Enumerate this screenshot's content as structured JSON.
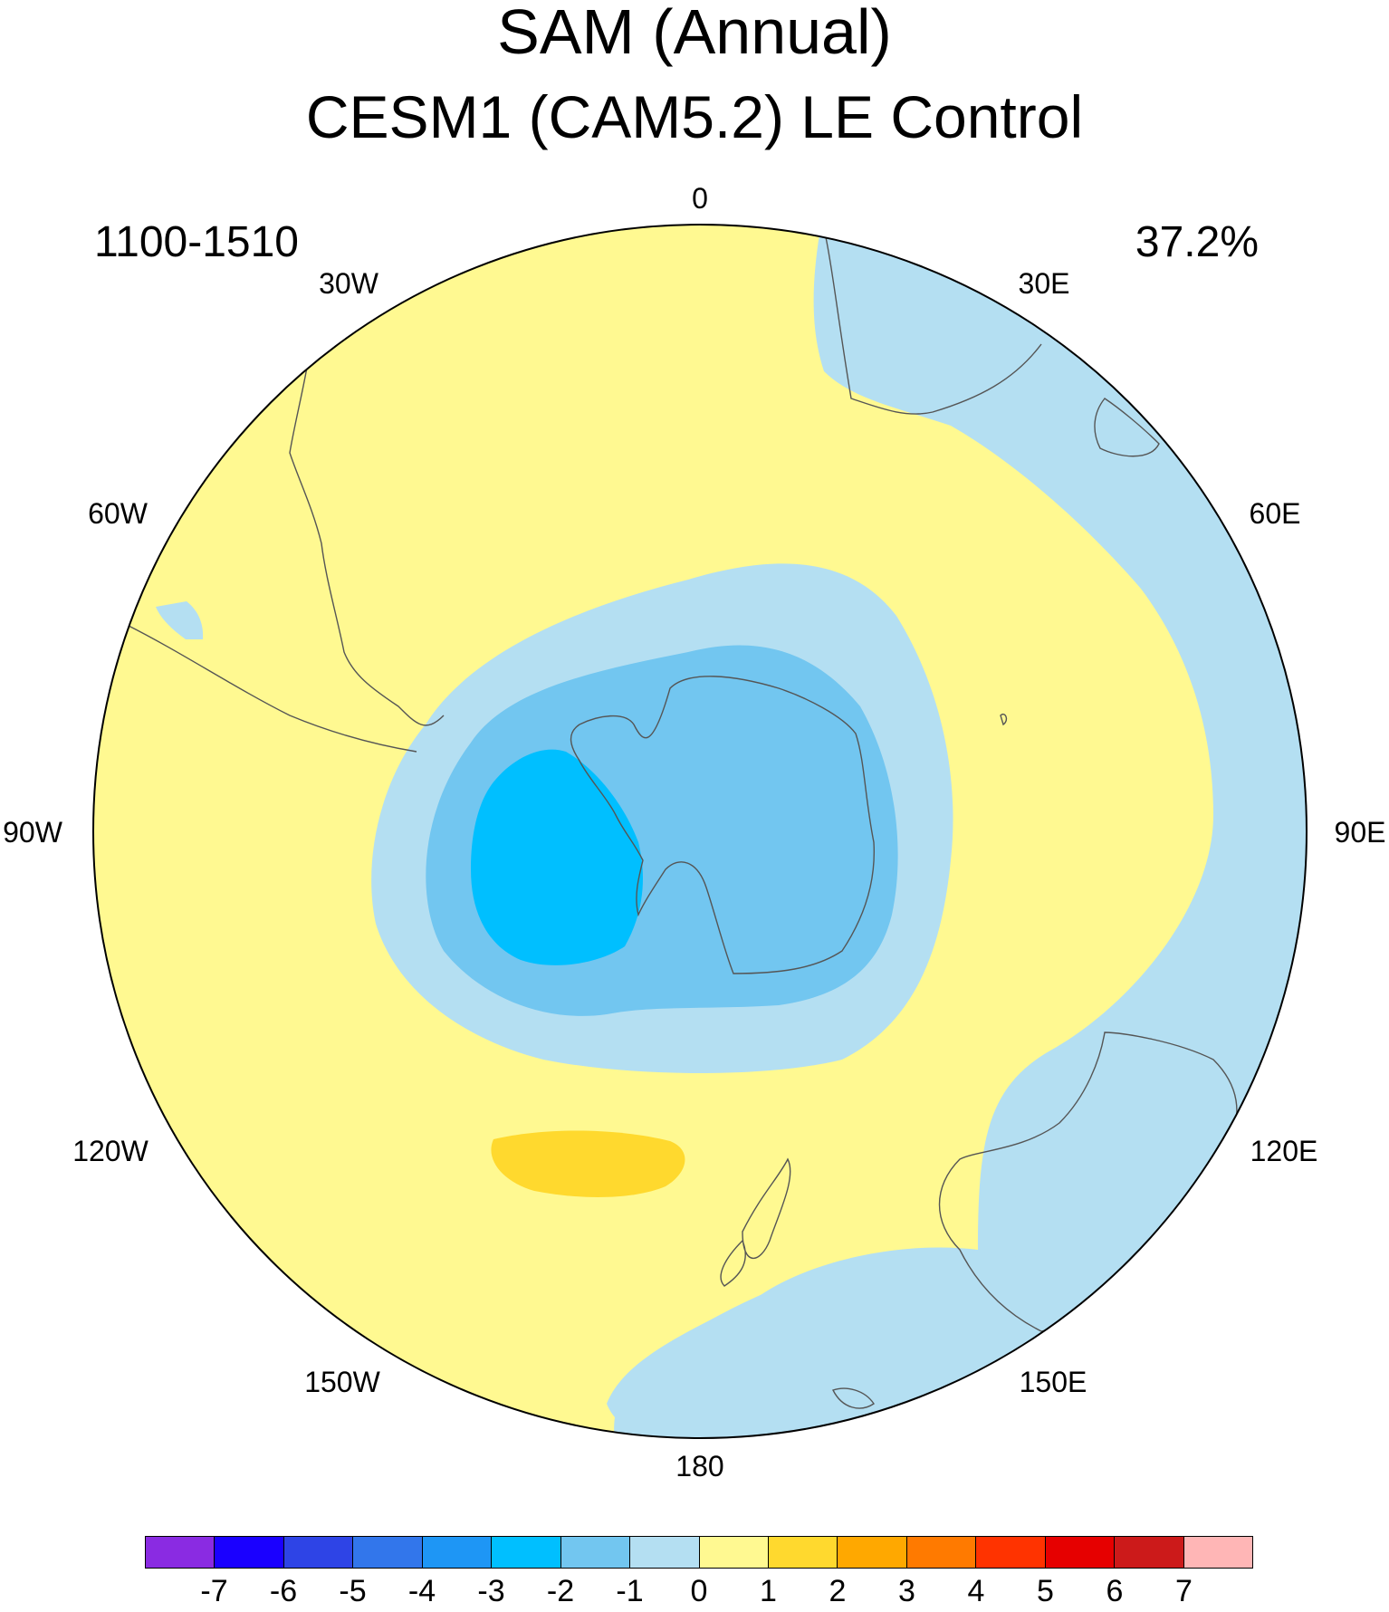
{
  "title": "SAM (Annual)",
  "subtitle": "CESM1 (CAM5.2) LE Control",
  "period": "1100-1510",
  "variance_explained": "37.2%",
  "longitude_labels": [
    "0",
    "30E",
    "60E",
    "90E",
    "120E",
    "150E",
    "180",
    "150W",
    "120W",
    "90W",
    "60W",
    "30W"
  ],
  "colorbar": {
    "ticks": [
      "-7",
      "-6",
      "-5",
      "-4",
      "-3",
      "-2",
      "-1",
      "0",
      "1",
      "2",
      "3",
      "4",
      "5",
      "6",
      "7"
    ],
    "colors": [
      "#8a2be2",
      "#1a00ff",
      "#2e44e6",
      "#3276eb",
      "#1e96f5",
      "#00bfff",
      "#72c6f0",
      "#b4dff2",
      "#fff991",
      "#ffd92e",
      "#ffa800",
      "#ff7a00",
      "#ff3300",
      "#e60000",
      "#cc1a1a",
      "#ffb6b6"
    ]
  },
  "map": {
    "projection": "south polar stereographic",
    "pole_lon_up": 0,
    "colors": {
      "positive_weak": "#fff991",
      "positive_moderate": "#ffd92e",
      "negative_weak": "#b4dff2",
      "negative_moderate": "#72c6f0",
      "negative_strong": "#00bfff",
      "coast": "#555555",
      "frame": "#000000"
    }
  }
}
